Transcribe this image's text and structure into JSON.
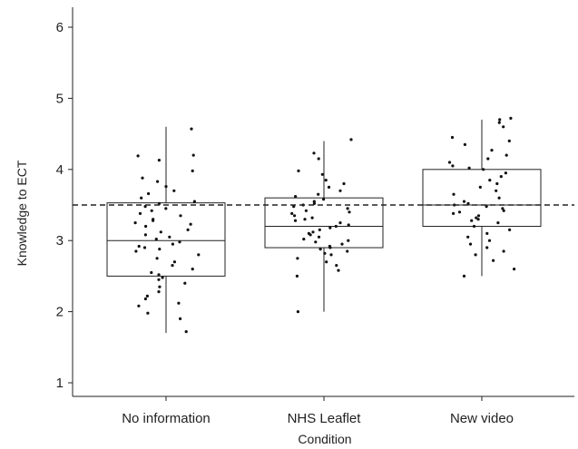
{
  "chart_data": {
    "type": "box",
    "title": "",
    "xlabel": "Condition",
    "ylabel": "Knowledge to ECT",
    "ylim": [
      0.7,
      6.3
    ],
    "yticks": [
      "1",
      "2",
      "3",
      "4",
      "5",
      "6"
    ],
    "grid": false,
    "reference_line": {
      "y": 3.5,
      "style": "dashed"
    },
    "categories": [
      "No information",
      "NHS Leaflet",
      "New video"
    ],
    "boxes": [
      {
        "category": "No information",
        "whisker_low": 1.7,
        "q1": 2.5,
        "median": 3.0,
        "q3": 3.53,
        "whisker_high": 4.6,
        "points": [
          4.57,
          4.2,
          4.19,
          4.13,
          3.98,
          3.88,
          3.83,
          3.76,
          3.7,
          3.66,
          3.6,
          3.55,
          3.52,
          3.48,
          3.45,
          3.42,
          3.38,
          3.35,
          3.3,
          3.28,
          3.25,
          3.23,
          3.2,
          3.15,
          3.12,
          3.08,
          3.05,
          3.02,
          2.98,
          2.95,
          2.92,
          2.9,
          2.88,
          2.85,
          2.8,
          2.75,
          2.7,
          2.65,
          2.6,
          2.55,
          2.52,
          2.48,
          2.45,
          2.4,
          2.35,
          2.28,
          2.22,
          2.18,
          2.12,
          2.08,
          1.98,
          1.9,
          1.72
        ]
      },
      {
        "category": "NHS Leaflet",
        "whisker_low": 2.0,
        "q1": 2.9,
        "median": 3.2,
        "q3": 3.6,
        "whisker_high": 4.4,
        "points": [
          4.42,
          4.23,
          4.15,
          3.98,
          3.93,
          3.85,
          3.8,
          3.75,
          3.7,
          3.65,
          3.62,
          3.58,
          3.55,
          3.52,
          3.5,
          3.48,
          3.45,
          3.42,
          3.4,
          3.38,
          3.35,
          3.32,
          3.3,
          3.28,
          3.25,
          3.22,
          3.2,
          3.18,
          3.15,
          3.12,
          3.1,
          3.08,
          3.05,
          3.02,
          3.0,
          2.98,
          2.95,
          2.92,
          2.9,
          2.88,
          2.85,
          2.82,
          2.8,
          2.75,
          2.7,
          2.65,
          2.58,
          2.5,
          2.0
        ]
      },
      {
        "category": "New video",
        "whisker_low": 2.5,
        "q1": 3.2,
        "median": 3.5,
        "q3": 4.0,
        "whisker_high": 4.7,
        "points": [
          4.72,
          4.7,
          4.66,
          4.6,
          4.45,
          4.4,
          4.35,
          4.27,
          4.2,
          4.15,
          4.1,
          4.05,
          4.02,
          4.0,
          3.95,
          3.9,
          3.85,
          3.8,
          3.75,
          3.7,
          3.65,
          3.6,
          3.55,
          3.52,
          3.5,
          3.48,
          3.45,
          3.42,
          3.4,
          3.38,
          3.35,
          3.32,
          3.3,
          3.28,
          3.25,
          3.2,
          3.15,
          3.1,
          3.05,
          3.0,
          2.95,
          2.9,
          2.85,
          2.8,
          2.72,
          2.6,
          2.5
        ]
      }
    ]
  }
}
